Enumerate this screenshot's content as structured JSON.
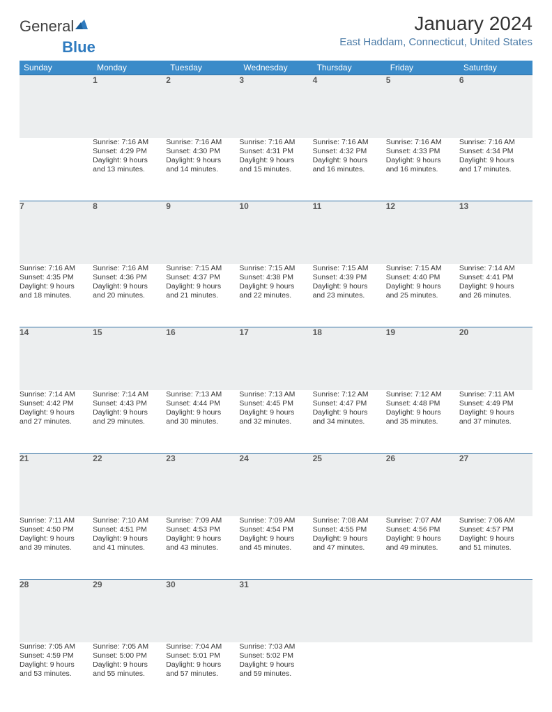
{
  "brand": {
    "part1": "General",
    "part2": "Blue"
  },
  "title": "January 2024",
  "location": "East Haddam, Connecticut, United States",
  "colors": {
    "header_bg": "#3b8bc9",
    "row_sep": "#2f6fa3",
    "daynum_bg": "#eceeef",
    "location_color": "#4a7aa6"
  },
  "typography": {
    "title_fontsize": 28,
    "location_fontsize": 15,
    "header_fontsize": 12,
    "body_fontsize": 10.5
  },
  "day_headers": [
    "Sunday",
    "Monday",
    "Tuesday",
    "Wednesday",
    "Thursday",
    "Friday",
    "Saturday"
  ],
  "weeks": [
    [
      {
        "n": "",
        "sr": "",
        "ss": "",
        "d1": "",
        "d2": ""
      },
      {
        "n": "1",
        "sr": "Sunrise: 7:16 AM",
        "ss": "Sunset: 4:29 PM",
        "d1": "Daylight: 9 hours",
        "d2": "and 13 minutes."
      },
      {
        "n": "2",
        "sr": "Sunrise: 7:16 AM",
        "ss": "Sunset: 4:30 PM",
        "d1": "Daylight: 9 hours",
        "d2": "and 14 minutes."
      },
      {
        "n": "3",
        "sr": "Sunrise: 7:16 AM",
        "ss": "Sunset: 4:31 PM",
        "d1": "Daylight: 9 hours",
        "d2": "and 15 minutes."
      },
      {
        "n": "4",
        "sr": "Sunrise: 7:16 AM",
        "ss": "Sunset: 4:32 PM",
        "d1": "Daylight: 9 hours",
        "d2": "and 16 minutes."
      },
      {
        "n": "5",
        "sr": "Sunrise: 7:16 AM",
        "ss": "Sunset: 4:33 PM",
        "d1": "Daylight: 9 hours",
        "d2": "and 16 minutes."
      },
      {
        "n": "6",
        "sr": "Sunrise: 7:16 AM",
        "ss": "Sunset: 4:34 PM",
        "d1": "Daylight: 9 hours",
        "d2": "and 17 minutes."
      }
    ],
    [
      {
        "n": "7",
        "sr": "Sunrise: 7:16 AM",
        "ss": "Sunset: 4:35 PM",
        "d1": "Daylight: 9 hours",
        "d2": "and 18 minutes."
      },
      {
        "n": "8",
        "sr": "Sunrise: 7:16 AM",
        "ss": "Sunset: 4:36 PM",
        "d1": "Daylight: 9 hours",
        "d2": "and 20 minutes."
      },
      {
        "n": "9",
        "sr": "Sunrise: 7:15 AM",
        "ss": "Sunset: 4:37 PM",
        "d1": "Daylight: 9 hours",
        "d2": "and 21 minutes."
      },
      {
        "n": "10",
        "sr": "Sunrise: 7:15 AM",
        "ss": "Sunset: 4:38 PM",
        "d1": "Daylight: 9 hours",
        "d2": "and 22 minutes."
      },
      {
        "n": "11",
        "sr": "Sunrise: 7:15 AM",
        "ss": "Sunset: 4:39 PM",
        "d1": "Daylight: 9 hours",
        "d2": "and 23 minutes."
      },
      {
        "n": "12",
        "sr": "Sunrise: 7:15 AM",
        "ss": "Sunset: 4:40 PM",
        "d1": "Daylight: 9 hours",
        "d2": "and 25 minutes."
      },
      {
        "n": "13",
        "sr": "Sunrise: 7:14 AM",
        "ss": "Sunset: 4:41 PM",
        "d1": "Daylight: 9 hours",
        "d2": "and 26 minutes."
      }
    ],
    [
      {
        "n": "14",
        "sr": "Sunrise: 7:14 AM",
        "ss": "Sunset: 4:42 PM",
        "d1": "Daylight: 9 hours",
        "d2": "and 27 minutes."
      },
      {
        "n": "15",
        "sr": "Sunrise: 7:14 AM",
        "ss": "Sunset: 4:43 PM",
        "d1": "Daylight: 9 hours",
        "d2": "and 29 minutes."
      },
      {
        "n": "16",
        "sr": "Sunrise: 7:13 AM",
        "ss": "Sunset: 4:44 PM",
        "d1": "Daylight: 9 hours",
        "d2": "and 30 minutes."
      },
      {
        "n": "17",
        "sr": "Sunrise: 7:13 AM",
        "ss": "Sunset: 4:45 PM",
        "d1": "Daylight: 9 hours",
        "d2": "and 32 minutes."
      },
      {
        "n": "18",
        "sr": "Sunrise: 7:12 AM",
        "ss": "Sunset: 4:47 PM",
        "d1": "Daylight: 9 hours",
        "d2": "and 34 minutes."
      },
      {
        "n": "19",
        "sr": "Sunrise: 7:12 AM",
        "ss": "Sunset: 4:48 PM",
        "d1": "Daylight: 9 hours",
        "d2": "and 35 minutes."
      },
      {
        "n": "20",
        "sr": "Sunrise: 7:11 AM",
        "ss": "Sunset: 4:49 PM",
        "d1": "Daylight: 9 hours",
        "d2": "and 37 minutes."
      }
    ],
    [
      {
        "n": "21",
        "sr": "Sunrise: 7:11 AM",
        "ss": "Sunset: 4:50 PM",
        "d1": "Daylight: 9 hours",
        "d2": "and 39 minutes."
      },
      {
        "n": "22",
        "sr": "Sunrise: 7:10 AM",
        "ss": "Sunset: 4:51 PM",
        "d1": "Daylight: 9 hours",
        "d2": "and 41 minutes."
      },
      {
        "n": "23",
        "sr": "Sunrise: 7:09 AM",
        "ss": "Sunset: 4:53 PM",
        "d1": "Daylight: 9 hours",
        "d2": "and 43 minutes."
      },
      {
        "n": "24",
        "sr": "Sunrise: 7:09 AM",
        "ss": "Sunset: 4:54 PM",
        "d1": "Daylight: 9 hours",
        "d2": "and 45 minutes."
      },
      {
        "n": "25",
        "sr": "Sunrise: 7:08 AM",
        "ss": "Sunset: 4:55 PM",
        "d1": "Daylight: 9 hours",
        "d2": "and 47 minutes."
      },
      {
        "n": "26",
        "sr": "Sunrise: 7:07 AM",
        "ss": "Sunset: 4:56 PM",
        "d1": "Daylight: 9 hours",
        "d2": "and 49 minutes."
      },
      {
        "n": "27",
        "sr": "Sunrise: 7:06 AM",
        "ss": "Sunset: 4:57 PM",
        "d1": "Daylight: 9 hours",
        "d2": "and 51 minutes."
      }
    ],
    [
      {
        "n": "28",
        "sr": "Sunrise: 7:05 AM",
        "ss": "Sunset: 4:59 PM",
        "d1": "Daylight: 9 hours",
        "d2": "and 53 minutes."
      },
      {
        "n": "29",
        "sr": "Sunrise: 7:05 AM",
        "ss": "Sunset: 5:00 PM",
        "d1": "Daylight: 9 hours",
        "d2": "and 55 minutes."
      },
      {
        "n": "30",
        "sr": "Sunrise: 7:04 AM",
        "ss": "Sunset: 5:01 PM",
        "d1": "Daylight: 9 hours",
        "d2": "and 57 minutes."
      },
      {
        "n": "31",
        "sr": "Sunrise: 7:03 AM",
        "ss": "Sunset: 5:02 PM",
        "d1": "Daylight: 9 hours",
        "d2": "and 59 minutes."
      },
      {
        "n": "",
        "sr": "",
        "ss": "",
        "d1": "",
        "d2": ""
      },
      {
        "n": "",
        "sr": "",
        "ss": "",
        "d1": "",
        "d2": ""
      },
      {
        "n": "",
        "sr": "",
        "ss": "",
        "d1": "",
        "d2": ""
      }
    ]
  ]
}
